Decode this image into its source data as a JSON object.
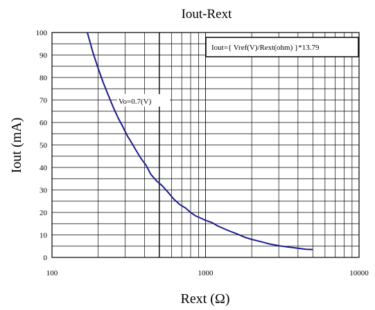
{
  "chart_data": {
    "type": "line",
    "title": "Iout-Rext",
    "xlabel": "Rext (Ω)",
    "ylabel": "Iout (mA)",
    "x_scale": "log",
    "xlim": [
      100,
      10000
    ],
    "ylim": [
      0,
      100
    ],
    "x_ticks": [
      "100",
      "1000",
      "10000"
    ],
    "y_ticks": [
      "0",
      "10",
      "20",
      "30",
      "40",
      "50",
      "60",
      "70",
      "80",
      "90",
      "100"
    ],
    "grid": true,
    "formula": "Iout={ Vref(V)/Rext(ohm) }*13.79",
    "series": [
      {
        "name": "Vo=0.7(V)",
        "color": "#1a1a8c",
        "points": [
          [
            170,
            100
          ],
          [
            185,
            91
          ],
          [
            200,
            84
          ],
          [
            215,
            78
          ],
          [
            230,
            73
          ],
          [
            250,
            67
          ],
          [
            270,
            62
          ],
          [
            290,
            58
          ],
          [
            310,
            54
          ],
          [
            330,
            51
          ],
          [
            350,
            48
          ],
          [
            380,
            44
          ],
          [
            410,
            41
          ],
          [
            440,
            37
          ],
          [
            480,
            34
          ],
          [
            520,
            32
          ],
          [
            570,
            29
          ],
          [
            620,
            26
          ],
          [
            680,
            23.5
          ],
          [
            740,
            22
          ],
          [
            800,
            20
          ],
          [
            860,
            18.5
          ],
          [
            930,
            17.5
          ],
          [
            1000,
            16.5
          ],
          [
            1100,
            15.5
          ],
          [
            1200,
            14
          ],
          [
            1400,
            12
          ],
          [
            1600,
            10.5
          ],
          [
            1800,
            9
          ],
          [
            2000,
            8
          ],
          [
            2300,
            7
          ],
          [
            2600,
            6
          ],
          [
            3000,
            5.2
          ],
          [
            3500,
            4.6
          ],
          [
            4000,
            4.1
          ],
          [
            4500,
            3.6
          ],
          [
            5000,
            3.5
          ]
        ]
      }
    ]
  }
}
